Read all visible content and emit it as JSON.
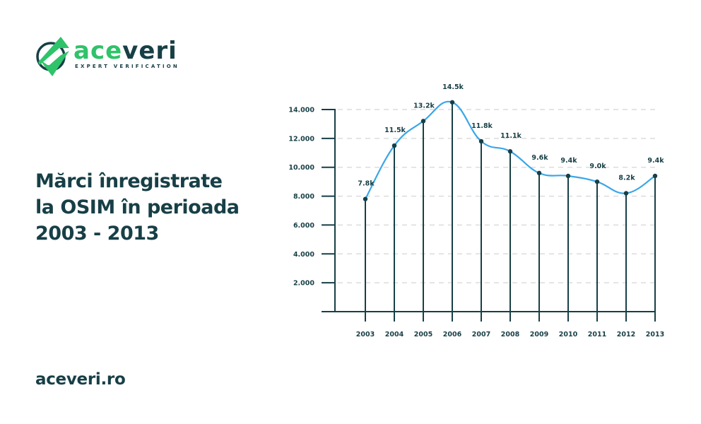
{
  "brand": {
    "name_part1": "ace",
    "name_part2": "veri",
    "tagline": "EXPERT VERIFICATION",
    "colors": {
      "green": "#2fc36a",
      "dark": "#173f46"
    }
  },
  "title": {
    "line1": "Mărci înregistrate",
    "line2": "la OSIM în perioada",
    "line3": "2003 - 2013"
  },
  "footer": {
    "url": "aceveri.ro"
  },
  "chart_data": {
    "type": "line",
    "title": "Mărci înregistrate la OSIM în perioada 2003 - 2013",
    "xlabel": "",
    "ylabel": "",
    "categories": [
      "2003",
      "2004",
      "2005",
      "2006",
      "2007",
      "2008",
      "2009",
      "2010",
      "2011",
      "2012",
      "2013"
    ],
    "values": [
      7800,
      11500,
      13200,
      14500,
      11800,
      11100,
      9600,
      9400,
      9000,
      8200,
      9400
    ],
    "data_labels": [
      "7.8k",
      "11.5k",
      "13.2k",
      "14.5k",
      "11.8k",
      "11.1k",
      "9.6k",
      "9.4k",
      "9.0k",
      "8.2k",
      "9.4k"
    ],
    "yticks": [
      2000,
      4000,
      6000,
      8000,
      10000,
      12000,
      14000
    ],
    "ytick_labels": [
      "2.000",
      "4.000",
      "6.000",
      "8.000",
      "10.000",
      "12.000",
      "14.000"
    ],
    "ylim": [
      0,
      14000
    ],
    "grid": true,
    "grid_style": "dashed horizontal",
    "line_color": "#3aa6e8",
    "stem_color": "#173f46",
    "smooth": true,
    "legend": null
  }
}
